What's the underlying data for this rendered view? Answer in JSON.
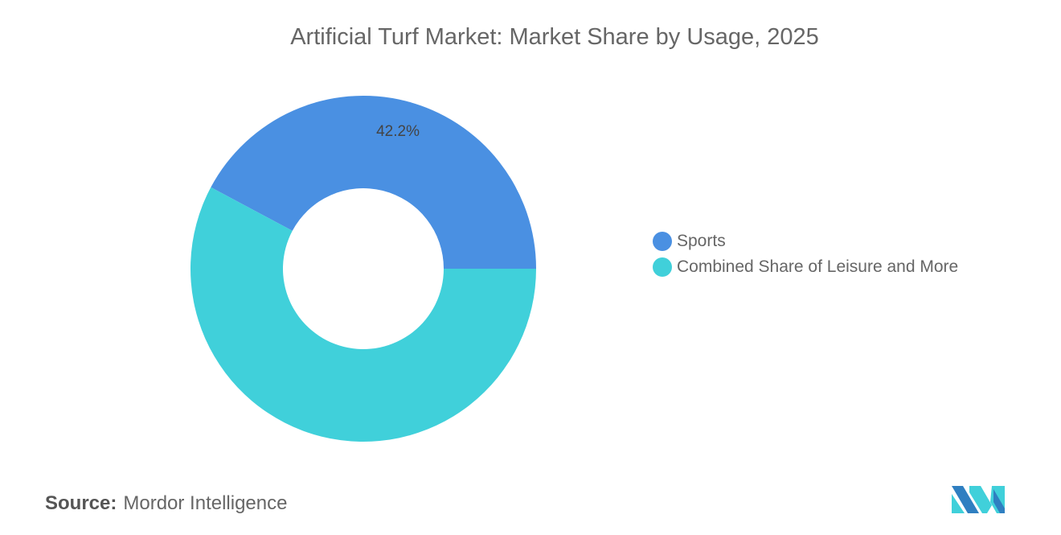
{
  "chart_data": {
    "type": "pie",
    "subtype": "donut",
    "title": "Artificial Turf Market: Market Share by Usage, 2025",
    "categories": [
      "Sports",
      "Combined Share of Leisure and More"
    ],
    "values": [
      42.2,
      57.8
    ],
    "data_labels": [
      "42.2%",
      ""
    ],
    "colors": [
      "#4A90E2",
      "#40D0DA"
    ],
    "legend_placement": "right"
  },
  "source": {
    "label": "Source:",
    "value": "Mordor Intelligence"
  },
  "logo": {
    "name": "Mordor Intelligence logo",
    "colors": [
      "#2F7FC1",
      "#40D0DA"
    ]
  }
}
